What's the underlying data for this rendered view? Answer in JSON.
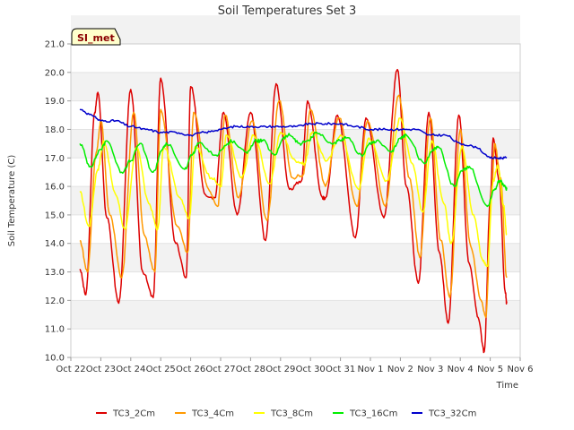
{
  "chart_data": {
    "type": "line",
    "title": "Soil Temperatures Set 3",
    "xlabel": "Time",
    "ylabel": "Soil Temperature (C)",
    "badge": "SI_met",
    "ylim": [
      10.0,
      21.0
    ],
    "yticks": [
      "10.0",
      "11.0",
      "12.0",
      "13.0",
      "14.0",
      "15.0",
      "16.0",
      "17.0",
      "18.0",
      "19.0",
      "20.0",
      "21.0"
    ],
    "xticks": [
      "Oct 22",
      "Oct 23",
      "Oct 24",
      "Oct 25",
      "Oct 26",
      "Oct 27",
      "Oct 28",
      "Oct 29",
      "Oct 30",
      "Oct 31",
      "Nov 1",
      "Nov 2",
      "Nov 3",
      "Nov 4",
      "Nov 5",
      "Nov 6"
    ],
    "grid": "horizontal bands",
    "legend_position": "bottom",
    "series": [
      {
        "name": "TC3_2Cm",
        "color": "#dd0000",
        "points": [
          [
            0.3,
            13.1
          ],
          [
            0.5,
            12.2
          ],
          [
            0.8,
            18.6
          ],
          [
            0.9,
            19.3
          ],
          [
            1.2,
            14.9
          ],
          [
            1.6,
            11.9
          ],
          [
            2.0,
            19.4
          ],
          [
            2.4,
            13.0
          ],
          [
            2.75,
            12.1
          ],
          [
            3.0,
            19.8
          ],
          [
            3.5,
            14.0
          ],
          [
            3.85,
            12.8
          ],
          [
            4.0,
            19.5
          ],
          [
            4.5,
            15.7
          ],
          [
            4.8,
            15.6
          ],
          [
            5.1,
            18.6
          ],
          [
            5.55,
            15.0
          ],
          [
            6.0,
            18.6
          ],
          [
            6.5,
            14.1
          ],
          [
            6.85,
            19.6
          ],
          [
            7.3,
            15.9
          ],
          [
            7.7,
            16.2
          ],
          [
            7.9,
            19.0
          ],
          [
            8.4,
            15.6
          ],
          [
            8.5,
            15.6
          ],
          [
            8.9,
            18.5
          ],
          [
            9.5,
            14.2
          ],
          [
            9.85,
            18.4
          ],
          [
            10.45,
            14.9
          ],
          [
            10.9,
            20.1
          ],
          [
            11.2,
            16.0
          ],
          [
            11.6,
            12.6
          ],
          [
            11.95,
            18.6
          ],
          [
            12.3,
            13.7
          ],
          [
            12.6,
            11.2
          ],
          [
            12.95,
            18.5
          ],
          [
            13.3,
            13.3
          ],
          [
            13.6,
            11.4
          ],
          [
            13.8,
            10.2
          ],
          [
            14.0,
            15.5
          ],
          [
            14.1,
            17.7
          ],
          [
            14.3,
            16.2
          ],
          [
            14.5,
            12.3
          ],
          [
            14.55,
            11.9
          ]
        ]
      },
      {
        "name": "TC3_4Cm",
        "color": "#ff9900",
        "points": [
          [
            0.3,
            14.1
          ],
          [
            0.55,
            13.0
          ],
          [
            0.85,
            17.2
          ],
          [
            1.0,
            18.3
          ],
          [
            1.3,
            15.0
          ],
          [
            1.7,
            12.8
          ],
          [
            2.1,
            18.6
          ],
          [
            2.45,
            14.3
          ],
          [
            2.8,
            13.0
          ],
          [
            3.0,
            18.7
          ],
          [
            3.55,
            14.6
          ],
          [
            3.9,
            13.7
          ],
          [
            4.1,
            18.6
          ],
          [
            4.6,
            15.9
          ],
          [
            4.9,
            15.3
          ],
          [
            5.15,
            18.5
          ],
          [
            5.6,
            15.6
          ],
          [
            6.05,
            18.3
          ],
          [
            6.55,
            14.8
          ],
          [
            6.95,
            19.0
          ],
          [
            7.4,
            16.3
          ],
          [
            7.75,
            16.4
          ],
          [
            8.0,
            18.7
          ],
          [
            8.5,
            16.0
          ],
          [
            8.95,
            18.4
          ],
          [
            9.55,
            15.3
          ],
          [
            9.9,
            18.3
          ],
          [
            10.5,
            15.3
          ],
          [
            10.95,
            19.2
          ],
          [
            11.3,
            16.3
          ],
          [
            11.65,
            13.5
          ],
          [
            12.0,
            18.4
          ],
          [
            12.35,
            14.1
          ],
          [
            12.65,
            12.1
          ],
          [
            13.0,
            18.0
          ],
          [
            13.35,
            13.9
          ],
          [
            13.7,
            12.0
          ],
          [
            13.85,
            11.4
          ],
          [
            14.05,
            15.8
          ],
          [
            14.15,
            17.5
          ],
          [
            14.35,
            16.3
          ],
          [
            14.55,
            12.8
          ]
        ]
      },
      {
        "name": "TC3_8Cm",
        "color": "#ffff00",
        "points": [
          [
            0.3,
            15.8
          ],
          [
            0.6,
            14.6
          ],
          [
            0.9,
            16.6
          ],
          [
            1.1,
            17.6
          ],
          [
            1.5,
            15.7
          ],
          [
            1.8,
            14.5
          ],
          [
            2.2,
            17.4
          ],
          [
            2.6,
            15.4
          ],
          [
            2.9,
            14.5
          ],
          [
            3.1,
            17.4
          ],
          [
            3.65,
            15.6
          ],
          [
            3.95,
            14.9
          ],
          [
            4.15,
            17.4
          ],
          [
            4.7,
            16.3
          ],
          [
            5.0,
            16.0
          ],
          [
            5.2,
            17.8
          ],
          [
            5.7,
            16.3
          ],
          [
            6.1,
            17.8
          ],
          [
            6.65,
            16.1
          ],
          [
            7.0,
            17.9
          ],
          [
            7.5,
            16.9
          ],
          [
            7.8,
            16.8
          ],
          [
            8.05,
            17.9
          ],
          [
            8.55,
            16.9
          ],
          [
            9.0,
            17.8
          ],
          [
            9.6,
            15.9
          ],
          [
            9.95,
            17.7
          ],
          [
            10.55,
            16.2
          ],
          [
            11.0,
            18.4
          ],
          [
            11.4,
            16.8
          ],
          [
            11.75,
            15.1
          ],
          [
            12.05,
            17.6
          ],
          [
            12.45,
            15.4
          ],
          [
            12.7,
            14.0
          ],
          [
            13.05,
            17.4
          ],
          [
            13.45,
            15.0
          ],
          [
            13.75,
            13.4
          ],
          [
            13.9,
            13.2
          ],
          [
            14.1,
            16.2
          ],
          [
            14.25,
            16.7
          ],
          [
            14.45,
            15.3
          ],
          [
            14.55,
            14.3
          ]
        ]
      },
      {
        "name": "TC3_16Cm",
        "color": "#00ee00",
        "points": [
          [
            0.3,
            17.5
          ],
          [
            0.65,
            16.7
          ],
          [
            1.0,
            17.3
          ],
          [
            1.2,
            17.6
          ],
          [
            1.7,
            16.5
          ],
          [
            2.0,
            16.9
          ],
          [
            2.3,
            17.5
          ],
          [
            2.75,
            16.5
          ],
          [
            3.05,
            17.3
          ],
          [
            3.2,
            17.5
          ],
          [
            3.8,
            16.6
          ],
          [
            4.1,
            17.2
          ],
          [
            4.25,
            17.5
          ],
          [
            4.85,
            17.1
          ],
          [
            5.25,
            17.5
          ],
          [
            5.35,
            17.6
          ],
          [
            5.85,
            17.2
          ],
          [
            6.2,
            17.6
          ],
          [
            6.4,
            17.6
          ],
          [
            6.8,
            17.1
          ],
          [
            7.1,
            17.7
          ],
          [
            7.3,
            17.8
          ],
          [
            7.65,
            17.5
          ],
          [
            7.9,
            17.6
          ],
          [
            8.2,
            17.9
          ],
          [
            8.7,
            17.5
          ],
          [
            9.0,
            17.6
          ],
          [
            9.2,
            17.7
          ],
          [
            9.7,
            17.1
          ],
          [
            10.0,
            17.5
          ],
          [
            10.2,
            17.6
          ],
          [
            10.7,
            17.2
          ],
          [
            11.0,
            17.7
          ],
          [
            11.2,
            17.8
          ],
          [
            11.8,
            16.8
          ],
          [
            12.1,
            17.3
          ],
          [
            12.25,
            17.4
          ],
          [
            12.8,
            16.0
          ],
          [
            13.1,
            16.6
          ],
          [
            13.3,
            16.7
          ],
          [
            13.9,
            15.3
          ],
          [
            14.15,
            15.9
          ],
          [
            14.3,
            16.2
          ],
          [
            14.5,
            16.0
          ],
          [
            14.55,
            15.9
          ]
        ]
      },
      {
        "name": "TC3_32Cm",
        "color": "#0000cc",
        "points": [
          [
            0.3,
            18.7
          ],
          [
            0.7,
            18.5
          ],
          [
            1.0,
            18.3
          ],
          [
            1.5,
            18.3
          ],
          [
            2.0,
            18.1
          ],
          [
            2.5,
            18.0
          ],
          [
            3.0,
            17.9
          ],
          [
            3.5,
            17.9
          ],
          [
            4.0,
            17.8
          ],
          [
            4.5,
            17.9
          ],
          [
            5.0,
            18.0
          ],
          [
            5.5,
            18.1
          ],
          [
            6.0,
            18.1
          ],
          [
            6.5,
            18.1
          ],
          [
            7.0,
            18.1
          ],
          [
            7.5,
            18.1
          ],
          [
            8.0,
            18.2
          ],
          [
            8.5,
            18.2
          ],
          [
            9.0,
            18.2
          ],
          [
            9.5,
            18.1
          ],
          [
            10.0,
            18.0
          ],
          [
            10.5,
            18.0
          ],
          [
            11.0,
            18.0
          ],
          [
            11.5,
            18.0
          ],
          [
            12.0,
            17.8
          ],
          [
            12.5,
            17.8
          ],
          [
            13.0,
            17.5
          ],
          [
            13.5,
            17.4
          ],
          [
            14.0,
            17.0
          ],
          [
            14.3,
            17.0
          ],
          [
            14.55,
            17.0
          ]
        ]
      }
    ]
  }
}
